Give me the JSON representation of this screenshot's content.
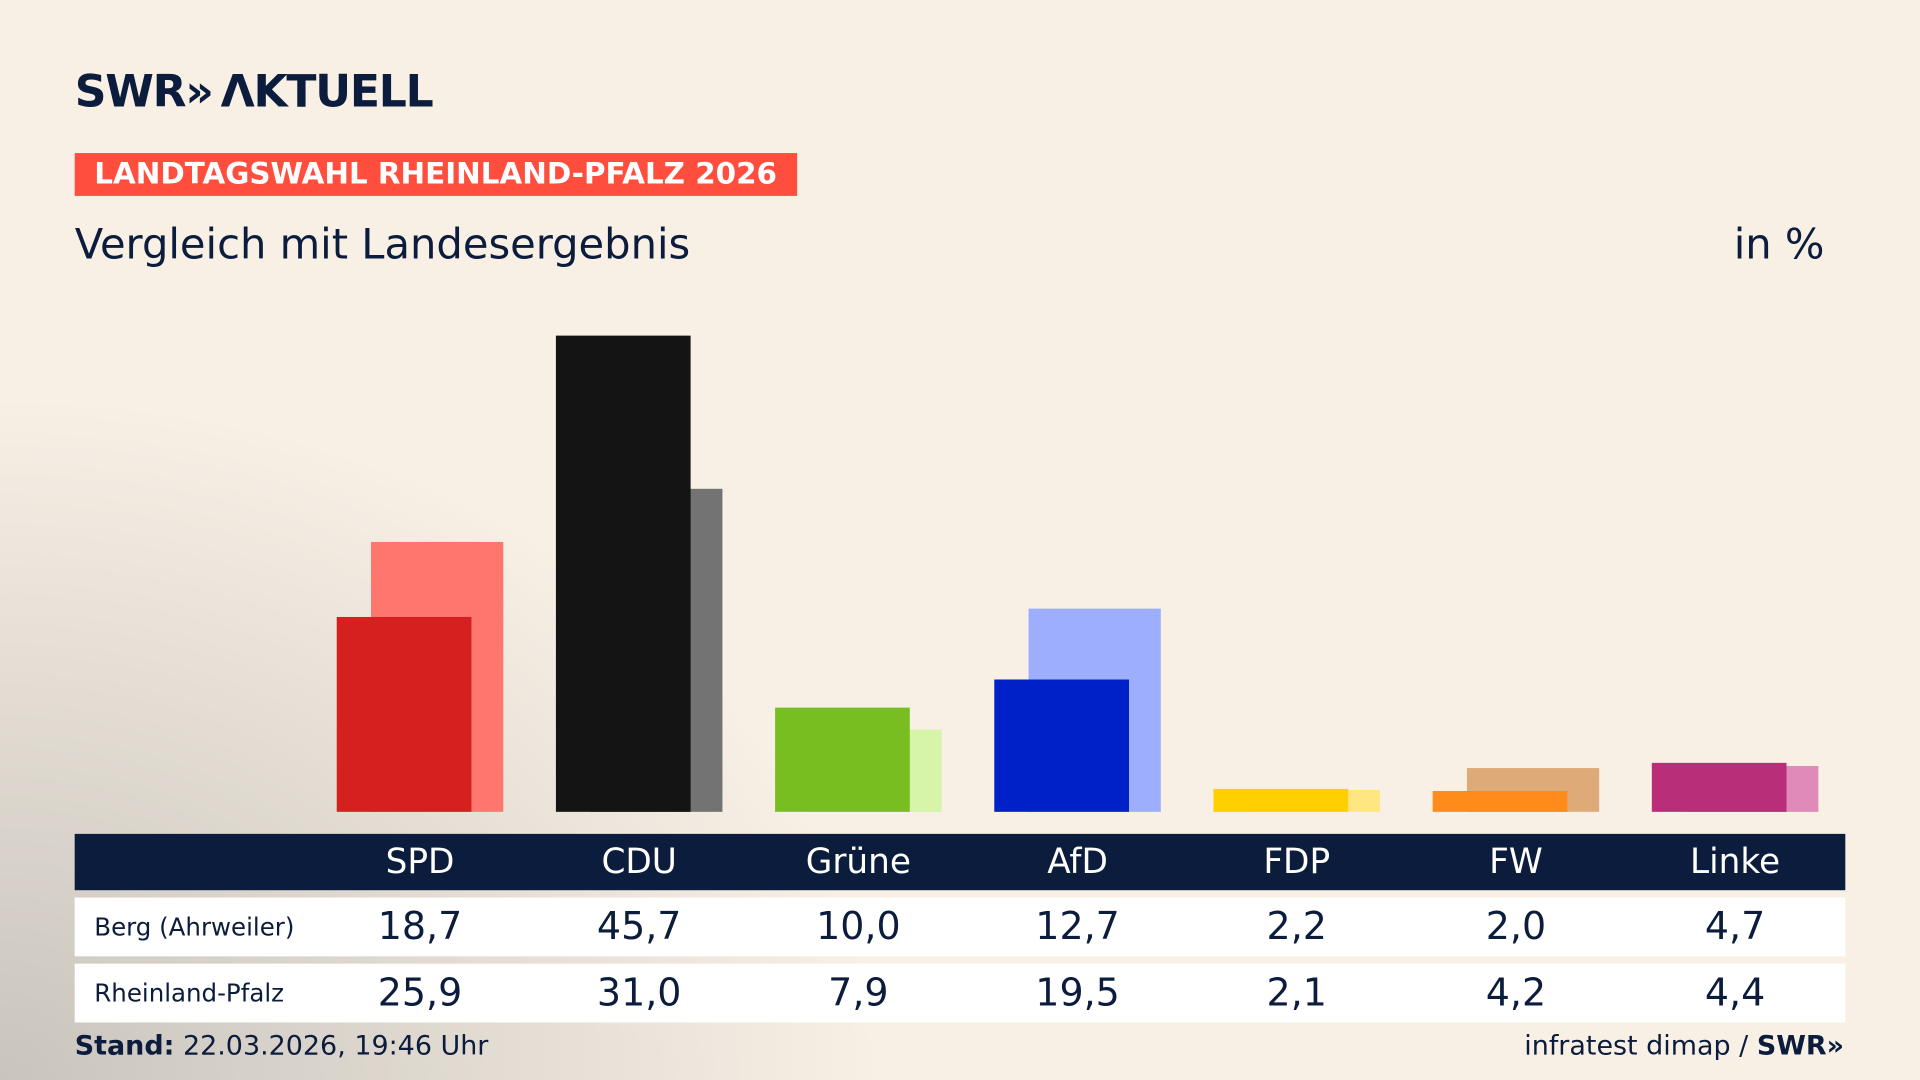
{
  "brand": {
    "logo": "SWR» AKTUELL",
    "source_logo": "SWR»"
  },
  "kicker": "LANDTAGSWAHL RHEINLAND-PFALZ 2026",
  "subtitle": "Vergleich mit Landesergebnis",
  "unit": "in %",
  "footer": {
    "stand_label": "Stand:",
    "stand_value": " 22.03.2026, 19:46 Uhr",
    "source": "infratest dimap / "
  },
  "chart_data": {
    "type": "bar",
    "categories": [
      "SPD",
      "CDU",
      "Grüne",
      "AfD",
      "FDP",
      "FW",
      "Linke"
    ],
    "series": [
      {
        "name": "Berg (Ahrweiler)",
        "values": [
          "18,7",
          "45,7",
          "10,0",
          "12,7",
          "2,2",
          "2,0",
          "4,7"
        ],
        "colors": [
          "#d62020",
          "#141414",
          "#78be20",
          "#0021c8",
          "#ffd000",
          "#ff8c1a",
          "#b82e78"
        ]
      },
      {
        "name": "Rheinland-Pfalz",
        "values": [
          "25,9",
          "31,0",
          "7,9",
          "19,5",
          "2,1",
          "4,2",
          "4,4"
        ],
        "colors": [
          "#ff766e",
          "#737373",
          "#d6f5a8",
          "#9eaeff",
          "#ffe680",
          "#deaa78",
          "#df8ab8"
        ]
      }
    ],
    "ylim": [
      0,
      50
    ],
    "grid": false
  }
}
